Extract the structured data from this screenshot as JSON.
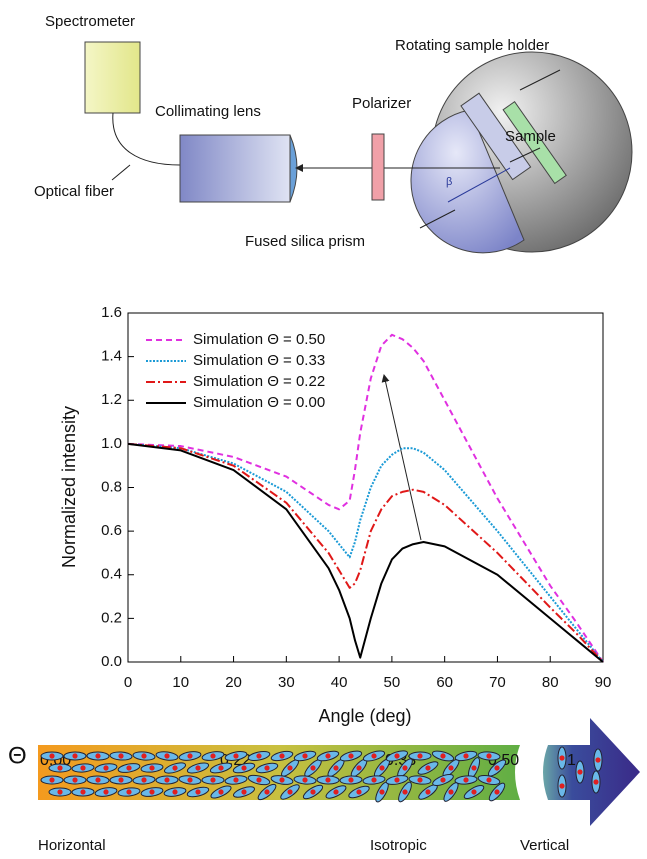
{
  "diagram": {
    "spectrometer": "Spectrometer",
    "holder": "Rotating sample holder",
    "polarizer": "Polarizer",
    "lens": "Collimating lens",
    "sample": "Sample",
    "fiber": "Optical fiber",
    "angle": "β",
    "prism": "Fused silica prism"
  },
  "chart_data": {
    "type": "line",
    "x_label": "Angle (deg)",
    "y_label": "Normalized intensity",
    "x": [
      0,
      10,
      20,
      30,
      38,
      40,
      42,
      43,
      44,
      46,
      48,
      50,
      52,
      54,
      56,
      60,
      70,
      80,
      85,
      90
    ],
    "series": [
      {
        "name": "Simulation Θ = 0.50",
        "color": "#e030e0",
        "dash": "6 4",
        "values": [
          1.0,
          0.99,
          0.94,
          0.85,
          0.72,
          0.7,
          0.74,
          0.88,
          1.05,
          1.3,
          1.45,
          1.5,
          1.48,
          1.44,
          1.38,
          1.2,
          0.75,
          0.35,
          0.18,
          0.0
        ]
      },
      {
        "name": "Simulation Θ = 0.33",
        "color": "#1a9ad6",
        "dash": "2 1.5",
        "values": [
          1.0,
          0.98,
          0.91,
          0.78,
          0.6,
          0.54,
          0.48,
          0.55,
          0.65,
          0.8,
          0.9,
          0.95,
          0.98,
          0.98,
          0.96,
          0.88,
          0.6,
          0.3,
          0.15,
          0.0
        ]
      },
      {
        "name": "Simulation Θ = 0.22",
        "color": "#e01818",
        "dash": "9 3 2 3",
        "values": [
          1.0,
          0.98,
          0.9,
          0.73,
          0.5,
          0.42,
          0.34,
          0.36,
          0.42,
          0.6,
          0.7,
          0.76,
          0.78,
          0.79,
          0.78,
          0.72,
          0.5,
          0.25,
          0.13,
          0.0
        ]
      },
      {
        "name": "Simulation Θ = 0.00",
        "color": "#000000",
        "dash": "none",
        "values": [
          1.0,
          0.97,
          0.88,
          0.7,
          0.43,
          0.33,
          0.2,
          0.1,
          0.02,
          0.2,
          0.36,
          0.47,
          0.52,
          0.54,
          0.55,
          0.53,
          0.4,
          0.2,
          0.1,
          0.0
        ]
      }
    ],
    "xlim": [
      0,
      90
    ],
    "xticks": [
      0,
      10,
      20,
      30,
      40,
      50,
      60,
      70,
      80,
      90
    ],
    "ylim": [
      0,
      1.6
    ],
    "yticks": [
      {
        "value": 0,
        "label": "0.0"
      },
      0.2,
      0.4,
      0.6,
      0.8,
      {
        "value": 1,
        "label": "1.0"
      },
      1.2,
      1.4,
      1.6
    ],
    "grid": false,
    "legend": "upper left"
  },
  "scale": {
    "symbol": "Θ",
    "marks": [
      "0.00",
      "0.22",
      "0.33",
      "0.50",
      "1"
    ],
    "left": "Horizontal",
    "middle": "Isotropic",
    "right": "Vertical"
  }
}
